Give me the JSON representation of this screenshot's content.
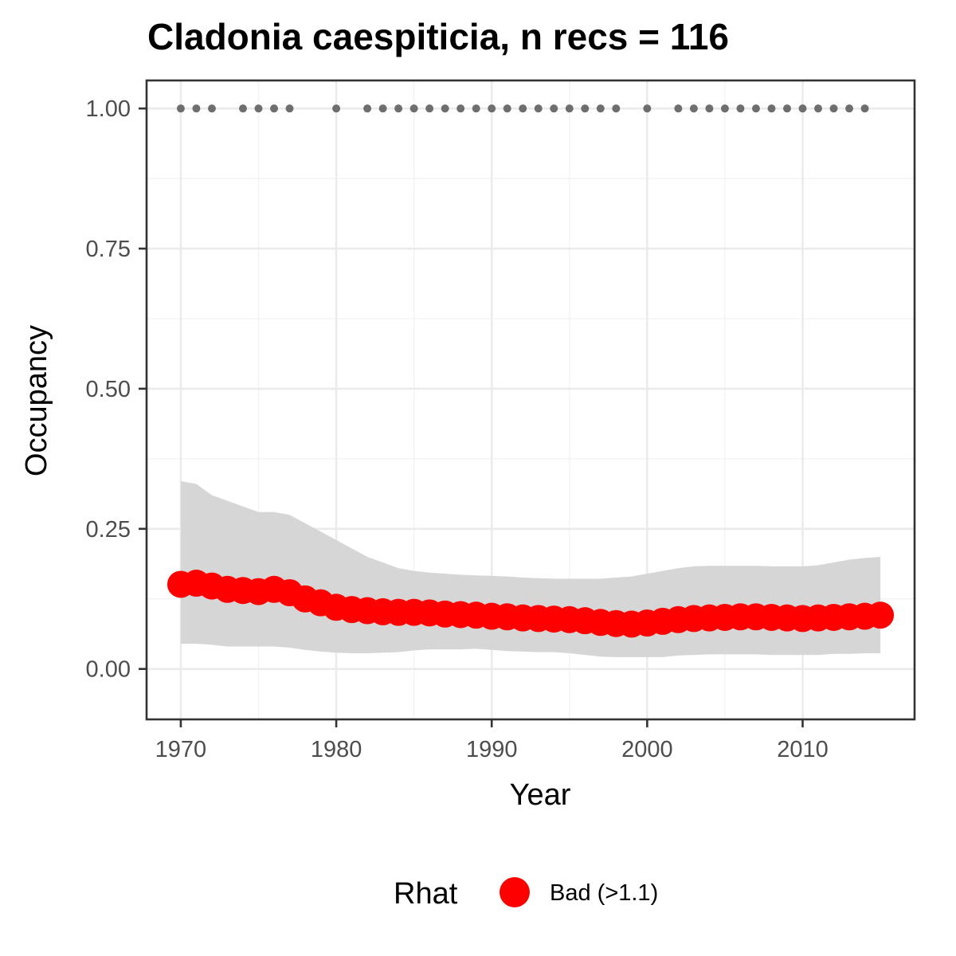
{
  "chart_data": {
    "type": "line",
    "title": "Cladonia caespiticia, n recs = 116",
    "xlabel": "Year",
    "ylabel": "Occupancy",
    "xlim": [
      1967.8,
      2017.2
    ],
    "ylim": [
      -0.09,
      1.05
    ],
    "x_ticks": [
      1970,
      1980,
      1990,
      2000,
      2010
    ],
    "x_tick_labels": [
      "1970",
      "1980",
      "1990",
      "2000",
      "2010"
    ],
    "y_ticks": [
      0,
      0.25,
      0.5,
      0.75,
      1.0
    ],
    "y_tick_labels": [
      "0.00",
      "0.25",
      "0.50",
      "0.75",
      "1.00"
    ],
    "grid": true,
    "legend": {
      "title": "Rhat",
      "placement": "bottom",
      "entries": [
        {
          "label": "Bad (>1.1)",
          "color": "#ff0000"
        }
      ]
    },
    "colors": {
      "points": "#ff0000",
      "ribbon": "#d6d6d6",
      "records": "#6e6e6e"
    },
    "years": [
      1970,
      1971,
      1972,
      1973,
      1974,
      1975,
      1976,
      1977,
      1978,
      1979,
      1980,
      1981,
      1982,
      1983,
      1984,
      1985,
      1986,
      1987,
      1988,
      1989,
      1990,
      1991,
      1992,
      1993,
      1994,
      1995,
      1996,
      1997,
      1998,
      1999,
      2000,
      2001,
      2002,
      2003,
      2004,
      2005,
      2006,
      2007,
      2008,
      2009,
      2010,
      2011,
      2012,
      2013,
      2014,
      2015
    ],
    "series": [
      {
        "name": "Bad (>1.1)",
        "values": [
          0.151,
          0.153,
          0.148,
          0.142,
          0.14,
          0.138,
          0.142,
          0.136,
          0.125,
          0.118,
          0.11,
          0.106,
          0.104,
          0.102,
          0.101,
          0.101,
          0.1,
          0.098,
          0.097,
          0.096,
          0.094,
          0.093,
          0.091,
          0.09,
          0.089,
          0.088,
          0.086,
          0.083,
          0.081,
          0.08,
          0.082,
          0.085,
          0.088,
          0.09,
          0.091,
          0.092,
          0.093,
          0.093,
          0.092,
          0.091,
          0.09,
          0.091,
          0.092,
          0.093,
          0.094,
          0.096
        ],
        "lower": [
          0.045,
          0.045,
          0.043,
          0.04,
          0.04,
          0.04,
          0.04,
          0.038,
          0.034,
          0.031,
          0.029,
          0.028,
          0.028,
          0.029,
          0.03,
          0.033,
          0.035,
          0.035,
          0.035,
          0.036,
          0.034,
          0.032,
          0.031,
          0.03,
          0.03,
          0.028,
          0.025,
          0.022,
          0.021,
          0.021,
          0.021,
          0.021,
          0.024,
          0.025,
          0.026,
          0.026,
          0.026,
          0.026,
          0.025,
          0.025,
          0.025,
          0.025,
          0.027,
          0.027,
          0.028,
          0.028
        ],
        "upper": [
          0.335,
          0.33,
          0.31,
          0.3,
          0.29,
          0.28,
          0.28,
          0.275,
          0.26,
          0.245,
          0.23,
          0.215,
          0.2,
          0.19,
          0.18,
          0.175,
          0.172,
          0.17,
          0.168,
          0.167,
          0.166,
          0.165,
          0.163,
          0.162,
          0.161,
          0.161,
          0.161,
          0.161,
          0.163,
          0.165,
          0.17,
          0.175,
          0.18,
          0.183,
          0.184,
          0.184,
          0.184,
          0.184,
          0.183,
          0.183,
          0.183,
          0.185,
          0.19,
          0.195,
          0.198,
          0.2
        ]
      }
    ],
    "records": {
      "y": 1.0,
      "years": [
        1970,
        1971,
        1972,
        1974,
        1975,
        1976,
        1977,
        1980,
        1982,
        1983,
        1984,
        1985,
        1986,
        1987,
        1988,
        1989,
        1990,
        1991,
        1992,
        1993,
        1994,
        1995,
        1996,
        1997,
        1998,
        2000,
        2002,
        2003,
        2004,
        2005,
        2006,
        2007,
        2008,
        2009,
        2010,
        2011,
        2012,
        2013,
        2014
      ]
    }
  }
}
